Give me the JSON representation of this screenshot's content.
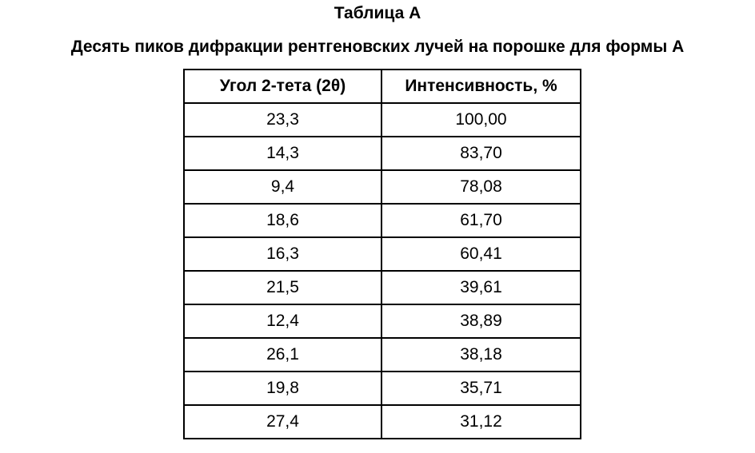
{
  "title": "Таблица А",
  "subtitle": "Десять пиков дифракции рентгеновских лучей на порошке для формы А",
  "table": {
    "headers": [
      "Угол 2-тета (2θ)",
      "Интенсивность, %"
    ],
    "rows": [
      [
        "23,3",
        "100,00"
      ],
      [
        "14,3",
        "83,70"
      ],
      [
        "9,4",
        "78,08"
      ],
      [
        "18,6",
        "61,70"
      ],
      [
        "16,3",
        "60,41"
      ],
      [
        "21,5",
        "39,61"
      ],
      [
        "12,4",
        "38,89"
      ],
      [
        "26,1",
        "38,18"
      ],
      [
        "19,8",
        "35,71"
      ],
      [
        "27,4",
        "31,12"
      ]
    ]
  }
}
